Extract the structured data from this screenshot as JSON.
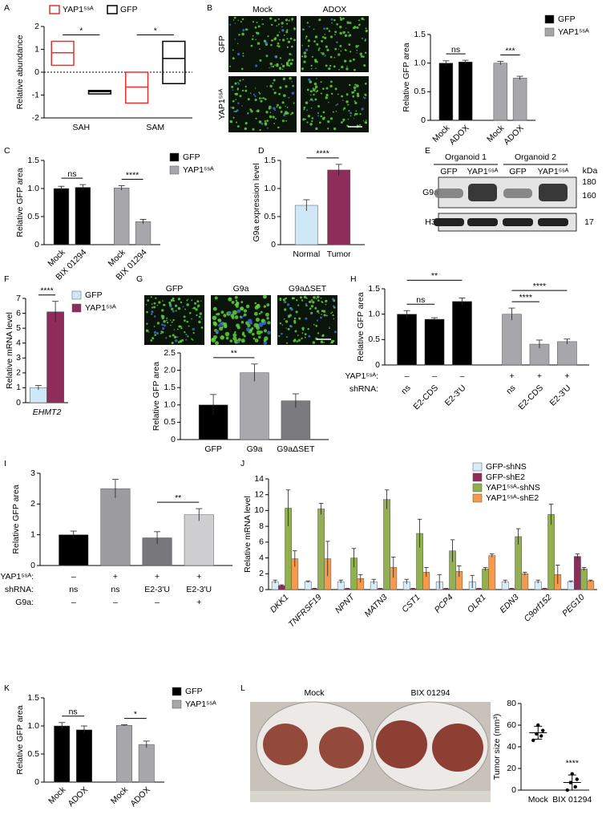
{
  "chart_data": [
    {
      "panel": "A",
      "type": "box",
      "ylabel": "Relative abundance",
      "categories": [
        "SAH",
        "SAM"
      ],
      "series": [
        {
          "name": "YAP1⁵ˢᴬ",
          "color": "#e8302a",
          "low": [
            0.3,
            -1.35
          ],
          "median": [
            0.85,
            -0.65
          ],
          "high": [
            1.35,
            0
          ]
        },
        {
          "name": "GFP",
          "color": "#000000",
          "low": [
            -0.95,
            -0.5
          ],
          "median": [
            -0.85,
            0.6
          ],
          "high": [
            -0.8,
            1.35
          ]
        }
      ],
      "ylim": [
        -2,
        2
      ],
      "yticks": [
        -2,
        -1,
        0,
        1,
        2
      ],
      "annotations": [
        {
          "text": "*",
          "from": 0,
          "to": 1
        },
        {
          "text": "*",
          "from": 2,
          "to": 3
        }
      ]
    },
    {
      "panel": "B",
      "type": "bar",
      "images": {
        "columns": [
          "Mock",
          "ADOX"
        ],
        "rows": [
          "GFP",
          "YAP1⁵ˢᴬ"
        ]
      },
      "ylabel": "Relative GFP area",
      "categories": [
        "Mock",
        "ADOX",
        "Mock",
        "ADOX"
      ],
      "series": [
        {
          "name": "GFP",
          "color": "#000000",
          "values": [
            1.0,
            1.02,
            null,
            null
          ],
          "errors": [
            0.04,
            0.03,
            null,
            null
          ]
        },
        {
          "name": "YAP1⁵ˢᴬ",
          "color": "#a6a6ab",
          "values": [
            null,
            null,
            1.0,
            0.74
          ],
          "errors": [
            null,
            null,
            0.03,
            0.03
          ]
        }
      ],
      "ylim": [
        0,
        1.5
      ],
      "yticks": [
        0,
        0.5,
        {
          "value": 1,
          "label": "1.0"
        },
        1.5
      ],
      "annotations": [
        {
          "text": "ns",
          "from": 0,
          "to": 1
        },
        {
          "text": "***",
          "from": 2,
          "to": 3
        }
      ]
    },
    {
      "panel": "C",
      "type": "bar",
      "ylabel": "Relative GFP area",
      "categories": [
        "Mock",
        "BIX 01294",
        "Mock",
        "BIX 01294"
      ],
      "series": [
        {
          "name": "GFP",
          "color": "#000000",
          "values": [
            1.0,
            1.02,
            null,
            null
          ],
          "errors": [
            0.04,
            0.05,
            null,
            null
          ]
        },
        {
          "name": "YAP1⁵ˢᴬ",
          "color": "#a6a6ab",
          "values": [
            null,
            null,
            1.01,
            0.41
          ],
          "errors": [
            null,
            null,
            0.04,
            0.04
          ]
        }
      ],
      "ylim": [
        0,
        1.5
      ],
      "yticks": [
        0,
        0.5,
        {
          "value": 1,
          "label": "1.0"
        },
        1.5
      ],
      "annotations": [
        {
          "text": "ns",
          "from": 0,
          "to": 1
        },
        {
          "text": "****",
          "from": 2,
          "to": 3
        }
      ]
    },
    {
      "panel": "D",
      "type": "bar",
      "ylabel": "G9a expression level",
      "categories": [
        "Normal",
        "Tumor"
      ],
      "values": [
        0.7,
        1.33
      ],
      "errors": [
        0.1,
        0.1
      ],
      "colors": [
        "#cfe8f7",
        "#8e2d5a"
      ],
      "ylim": [
        0,
        1.5
      ],
      "yticks": [
        0,
        0.5,
        {
          "value": 1,
          "label": "1.0"
        },
        1.5
      ],
      "annotations": [
        {
          "text": "****",
          "from": 0,
          "to": 1
        }
      ]
    },
    {
      "panel": "E",
      "type": "blot",
      "groups": [
        "Organoid 1",
        "Organoid 2"
      ],
      "lanes": [
        "GFP",
        "YAP1⁵ˢᴬ",
        "GFP",
        "YAP1⁵ˢᴬ"
      ],
      "proteins": [
        "G9a",
        "H3"
      ],
      "unit": "kDa",
      "markers": [
        180,
        160,
        17
      ]
    },
    {
      "panel": "F",
      "type": "bar",
      "grouped": true,
      "ylabel": "Relative mRNA level",
      "categories": [
        "EHMT2"
      ],
      "series": [
        {
          "name": "GFP",
          "color": "#cfe8f7",
          "values": [
            1.0
          ],
          "errors": [
            0.15
          ]
        },
        {
          "name": "YAP1⁵ˢᴬ",
          "color": "#8e2d5a",
          "values": [
            6.1
          ],
          "errors": [
            0.7
          ]
        }
      ],
      "ylim": [
        0,
        7
      ],
      "yticks": [
        0,
        1,
        2,
        3,
        4,
        5,
        6,
        7
      ],
      "annotations": [
        {
          "text": "****",
          "from": 0,
          "to": 1
        }
      ]
    },
    {
      "panel": "G",
      "type": "bar",
      "images": {
        "columns": [
          "GFP",
          "G9a",
          "G9aΔSET"
        ]
      },
      "ylabel": "Relative GFP area",
      "categories": [
        "GFP",
        "G9a",
        "G9aΔSET"
      ],
      "values": [
        1.0,
        1.93,
        1.12
      ],
      "errors": [
        0.3,
        0.25,
        0.2
      ],
      "colors": [
        "#000000",
        "#a8a8ad",
        "#7a7a7f"
      ],
      "ylim": [
        0,
        2.5
      ],
      "yticks": [
        0,
        0.5,
        {
          "value": 1,
          "label": "1.0"
        },
        1.5,
        {
          "value": 2,
          "label": "2.0"
        },
        2.5
      ],
      "annotations": [
        {
          "text": "**",
          "from": 0,
          "to": 1
        }
      ]
    },
    {
      "panel": "H",
      "type": "bar",
      "ylabel": "Relative GFP area",
      "rows": [
        {
          "label": "YAP1⁵ˢᴬ:",
          "values": [
            "–",
            "–",
            "–",
            "+",
            "+",
            "+"
          ]
        },
        {
          "label": "shRNA:",
          "values": [
            "ns",
            "E2-CDS",
            "E2-3'U",
            "ns",
            "E2-CDS",
            "E2-3'U"
          ]
        }
      ],
      "values": [
        1.0,
        0.9,
        1.25,
        1.0,
        0.41,
        0.46
      ],
      "errors": [
        0.07,
        0.03,
        0.07,
        0.12,
        0.08,
        0.05
      ],
      "colors": [
        "#000000",
        "#000000",
        "#000000",
        "#a6a6ab",
        "#a6a6ab",
        "#a6a6ab"
      ],
      "ylim": [
        0,
        1.5
      ],
      "yticks": [
        0,
        0.5,
        {
          "value": 1,
          "label": "1.0"
        },
        1.5
      ],
      "annotations": [
        {
          "text": "ns",
          "from": 0,
          "to": 1
        },
        {
          "text": "**",
          "from": 0,
          "to": 2
        },
        {
          "text": "****",
          "from": 3,
          "to": 4
        },
        {
          "text": "****",
          "from": 3,
          "to": 5
        }
      ]
    },
    {
      "panel": "I",
      "type": "bar",
      "ylabel": "Relative GFP area",
      "rows": [
        {
          "label": "YAP1⁵ˢᴬ:",
          "values": [
            "–",
            "+",
            "+",
            "+"
          ]
        },
        {
          "label": "shRNA:",
          "values": [
            "ns",
            "ns",
            "E2-3'U",
            "E2-3'U"
          ]
        },
        {
          "label": "G9a:",
          "values": [
            "–",
            "–",
            "–",
            "+"
          ]
        }
      ],
      "values": [
        1.0,
        2.5,
        0.9,
        1.65
      ],
      "errors": [
        0.12,
        0.3,
        0.2,
        0.2
      ],
      "colors": [
        "#000000",
        "#9b9ba0",
        "#77777c",
        "#cfcfd2"
      ],
      "ylim": [
        0,
        3
      ],
      "yticks": [
        0,
        1,
        2,
        3
      ],
      "annotations": [
        {
          "text": "**",
          "from": 2,
          "to": 3
        }
      ]
    },
    {
      "panel": "J",
      "type": "bar",
      "grouped": true,
      "ylabel": "Relative mRNA level",
      "categories": [
        "DKK1",
        "TNFRSF19",
        "NPNT",
        "MATN3",
        "CST1",
        "PCP4",
        "OLR1",
        "EDN3",
        "C9orf152",
        "PEG10"
      ],
      "series": [
        {
          "name": "GFP-shNS",
          "color": "#d8ecf8",
          "values": [
            1.0,
            1.0,
            1.0,
            1.0,
            1.0,
            1.0,
            1.0,
            1.0,
            1.0,
            1.0
          ],
          "errors": [
            0.2,
            0.1,
            0.2,
            0.3,
            0.3,
            0.9,
            0.8,
            0.2,
            0.2,
            0.1
          ]
        },
        {
          "name": "GFP-shE2",
          "color": "#8e2d5a",
          "values": [
            0.5,
            0.1,
            0.1,
            0.1,
            0.1,
            0.1,
            0.1,
            0.1,
            0.1,
            4.2
          ],
          "errors": [
            0.1,
            0.05,
            0.05,
            0.05,
            0.05,
            0.05,
            0.05,
            0.05,
            0.05,
            0.3
          ]
        },
        {
          "name": "YAP1⁵ˢᴬ-shNS",
          "color": "#92b050",
          "values": [
            10.3,
            10.2,
            4.0,
            11.4,
            7.1,
            4.9,
            2.6,
            6.7,
            9.5,
            2.6
          ],
          "errors": [
            2.3,
            0.7,
            1.2,
            1.2,
            1.8,
            1.4,
            0.2,
            1.0,
            1.3,
            0.2
          ]
        },
        {
          "name": "YAP1⁵ˢᴬ-shE2",
          "color": "#f39a4d",
          "values": [
            3.9,
            3.9,
            1.4,
            2.8,
            2.2,
            2.3,
            4.3,
            2.0,
            1.9,
            1.1
          ],
          "errors": [
            1.0,
            2.2,
            0.5,
            1.3,
            0.6,
            0.7,
            0.2,
            0.2,
            1.2,
            0.1
          ]
        }
      ],
      "ylim": [
        0,
        14
      ],
      "yticks": [
        0,
        2,
        4,
        6,
        8,
        10,
        12,
        14
      ]
    },
    {
      "panel": "K",
      "type": "bar",
      "ylabel": "Relative GFP area",
      "categories": [
        "Mock",
        "ADOX",
        "Mock",
        "ADOX"
      ],
      "series": [
        {
          "name": "GFP",
          "color": "#000000",
          "values": [
            1.0,
            0.93,
            null,
            null
          ],
          "errors": [
            0.06,
            0.07,
            null,
            null
          ]
        },
        {
          "name": "YAP1⁵ˢᴬ",
          "color": "#a6a6ab",
          "values": [
            null,
            null,
            1.01,
            0.67
          ],
          "errors": [
            null,
            null,
            0.01,
            0.06
          ]
        }
      ],
      "ylim": [
        0,
        1.5
      ],
      "yticks": [
        0,
        0.5,
        {
          "value": 1,
          "label": "1.0"
        },
        1.5
      ],
      "annotations": [
        {
          "text": "ns",
          "from": 0,
          "to": 1
        },
        {
          "text": "*",
          "from": 2,
          "to": 3
        }
      ]
    },
    {
      "panel": "L",
      "type": "dot",
      "photo_labels": [
        "Mock",
        "BIX 01294"
      ],
      "ylabel": "Tumor size (mm³)",
      "categories": [
        "Mock",
        "BIX 01294"
      ],
      "points": [
        [
          46,
          50,
          52,
          55,
          60
        ],
        [
          0,
          3,
          7,
          10,
          15
        ]
      ],
      "means": [
        53,
        7
      ],
      "errors": [
        6,
        7
      ],
      "color": "#000000",
      "ylim": [
        0,
        80
      ],
      "yticks": [
        0,
        20,
        40,
        60,
        80
      ],
      "annotations": [
        {
          "text": "****",
          "from": 1,
          "to": 1
        }
      ]
    }
  ]
}
